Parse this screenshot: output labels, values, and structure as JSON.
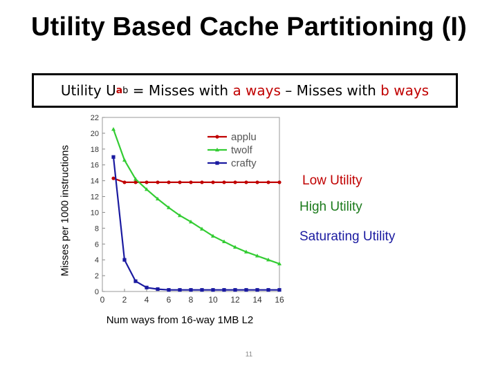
{
  "slide": {
    "title": "Utility Based Cache Partitioning (I)",
    "page_number": "11"
  },
  "formula": {
    "prefix": "Utility U",
    "sub": "a",
    "sup": "b",
    "eq": " = Misses with ",
    "a_ways": "a ways",
    "dash": " – Misses with ",
    "b_ways": "b ways"
  },
  "annotations": [
    {
      "text": "Low Utility",
      "color": "#c00000"
    },
    {
      "text": "High Utility",
      "color": "#1b7a1b"
    },
    {
      "text": "Saturating Utility",
      "color": "#1a1aa0"
    }
  ],
  "chart_data": {
    "type": "line",
    "xlabel": "Num ways from 16-way 1MB L2",
    "ylabel": "Misses per 1000 instructions",
    "xlim": [
      0,
      16
    ],
    "ylim": [
      0,
      22
    ],
    "xticks": [
      0,
      2,
      4,
      6,
      8,
      10,
      12,
      14,
      16
    ],
    "yticks": [
      0,
      2,
      4,
      6,
      8,
      10,
      12,
      14,
      16,
      18,
      20,
      22
    ],
    "legend": "top-right",
    "x": [
      1,
      2,
      3,
      4,
      5,
      6,
      7,
      8,
      9,
      10,
      11,
      12,
      13,
      14,
      15,
      16
    ],
    "series": [
      {
        "name": "applu",
        "color": "#c00000",
        "values": [
          14.3,
          13.8,
          13.8,
          13.8,
          13.8,
          13.8,
          13.8,
          13.8,
          13.8,
          13.8,
          13.8,
          13.8,
          13.8,
          13.8,
          13.8,
          13.8
        ]
      },
      {
        "name": "twolf",
        "color": "#33cc33",
        "values": [
          20.5,
          16.6,
          14.2,
          12.9,
          11.7,
          10.6,
          9.6,
          8.8,
          7.9,
          7.0,
          6.3,
          5.6,
          5.0,
          4.5,
          4.0,
          3.5
        ]
      },
      {
        "name": "crafty",
        "color": "#1a1aa0",
        "values": [
          17.0,
          4.0,
          1.3,
          0.5,
          0.3,
          0.2,
          0.2,
          0.2,
          0.2,
          0.2,
          0.2,
          0.2,
          0.2,
          0.2,
          0.2,
          0.2
        ]
      }
    ]
  }
}
